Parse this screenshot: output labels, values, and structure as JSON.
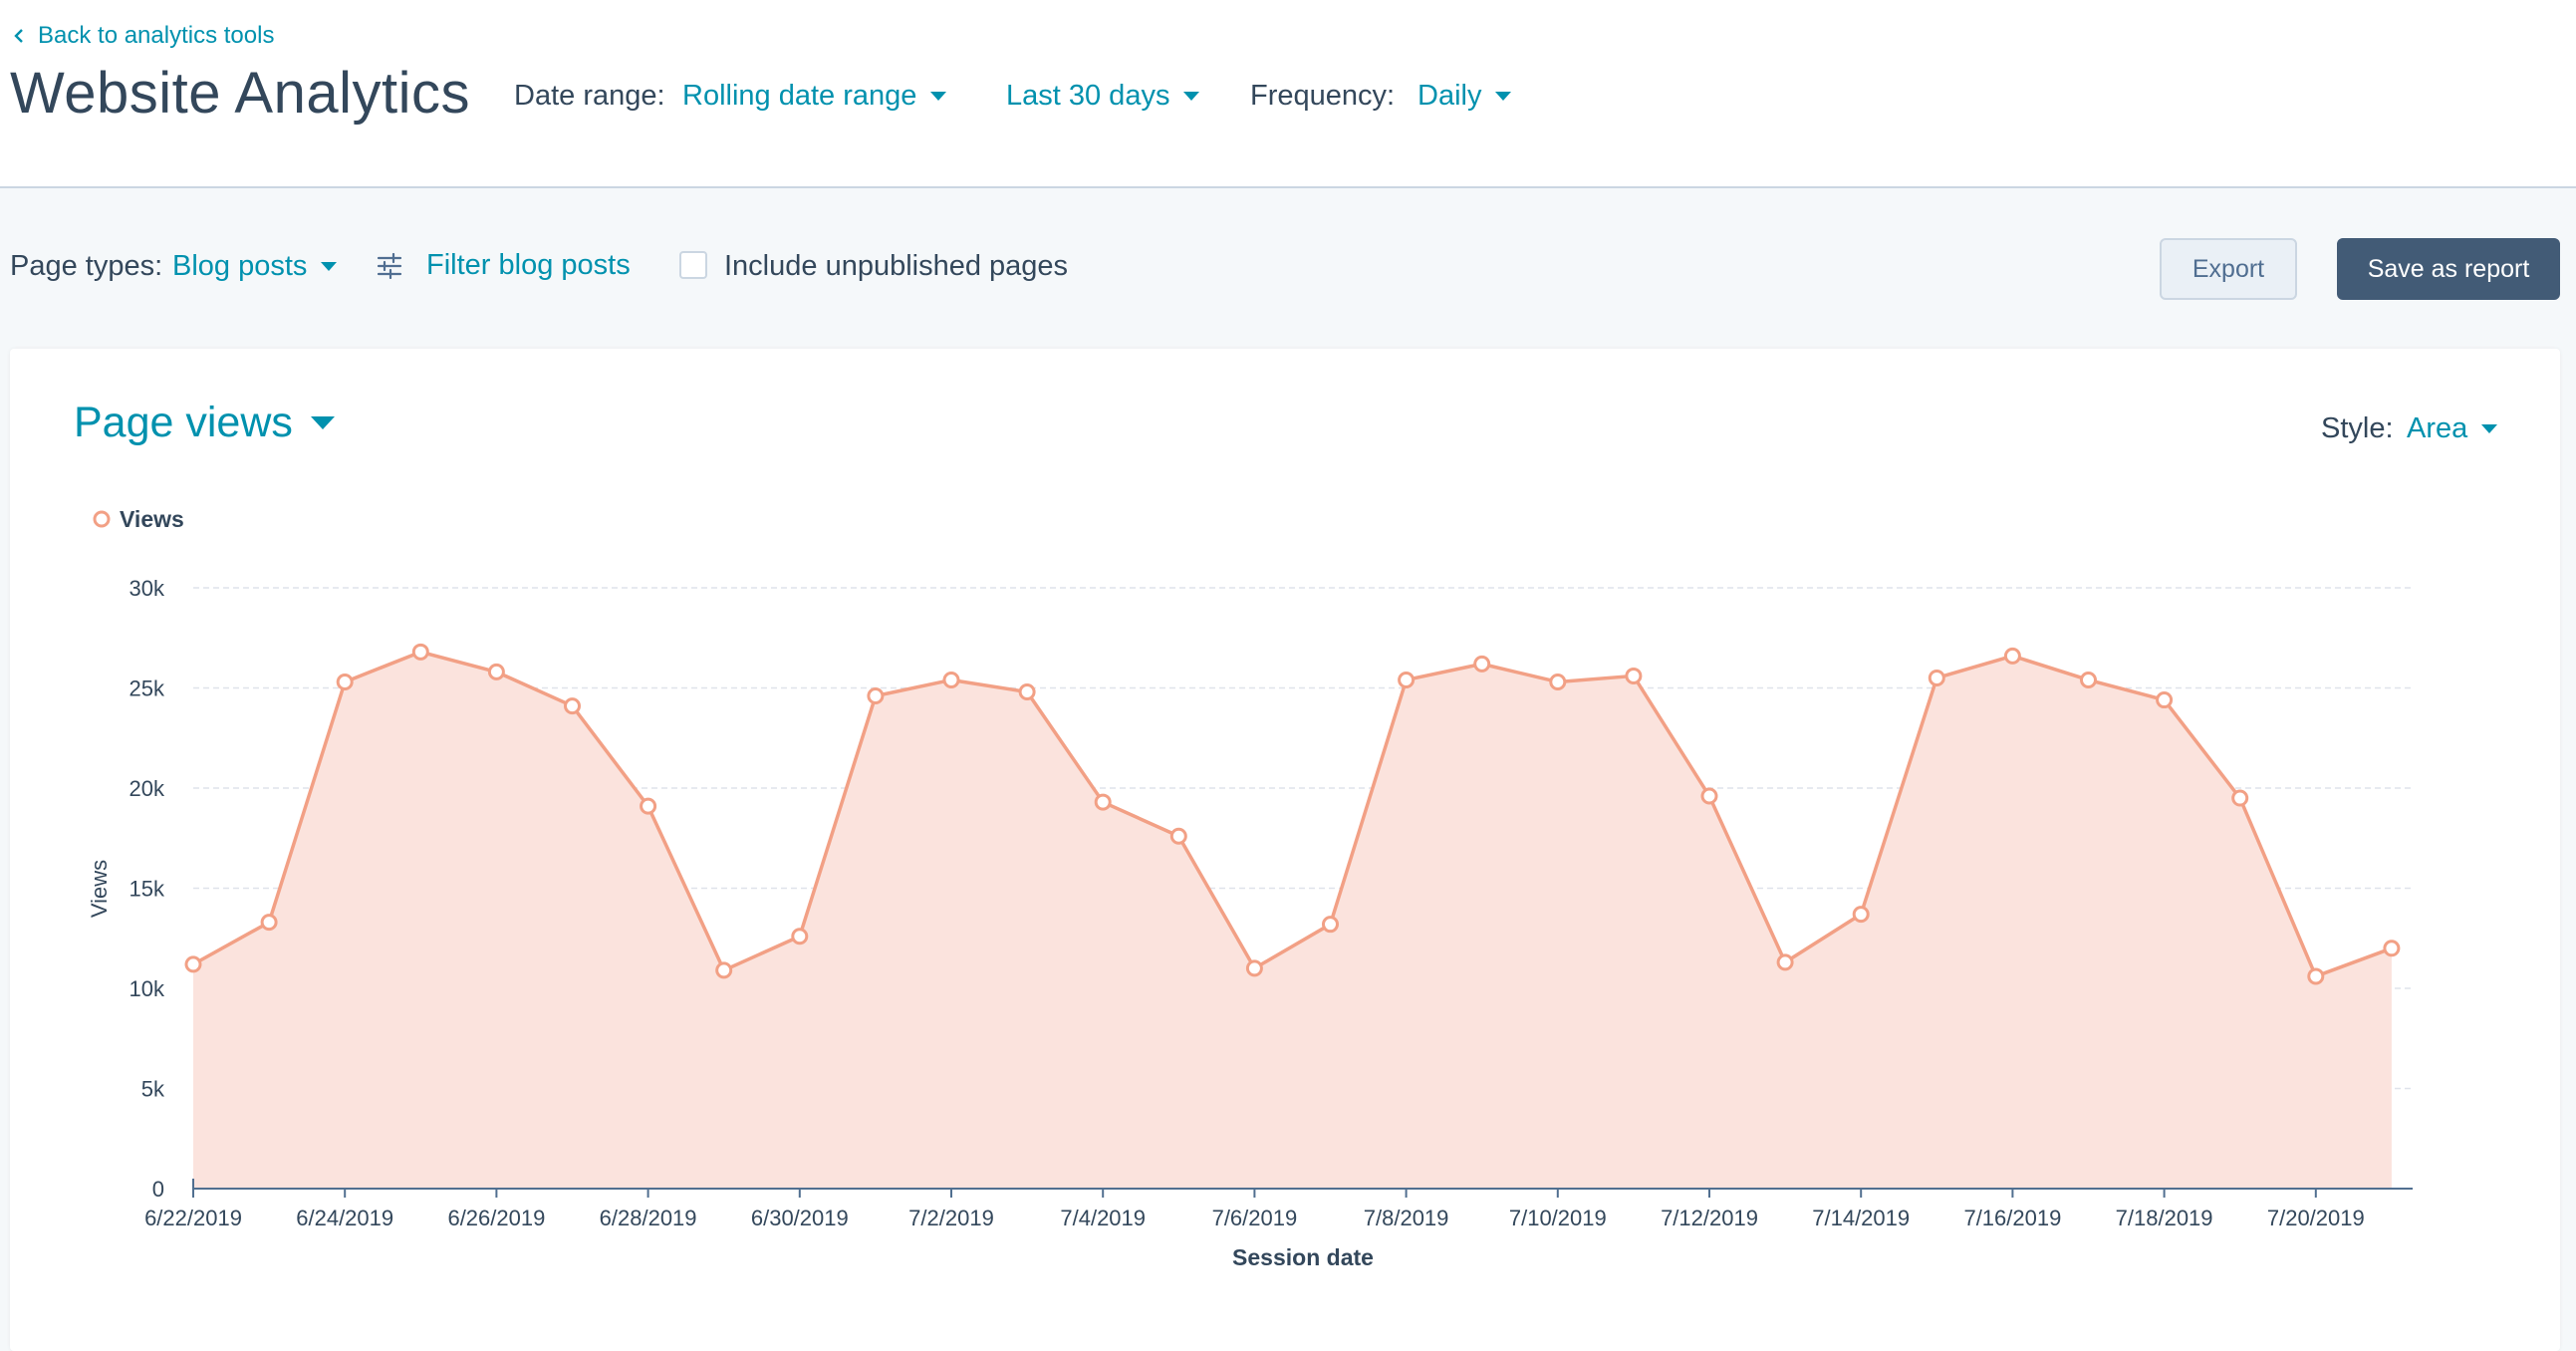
{
  "header": {
    "back_link": "Back to analytics tools",
    "title": "Website Analytics",
    "date_range_label": "Date range:",
    "date_range_value": "Rolling date range",
    "period_value": "Last 30 days",
    "frequency_label": "Frequency:",
    "frequency_value": "Daily"
  },
  "filters": {
    "page_types_label": "Page types:",
    "page_types_value": "Blog posts",
    "filter_link": "Filter blog posts",
    "include_unpublished_label": "Include unpublished pages",
    "include_unpublished_checked": false,
    "export_label": "Export",
    "save_label": "Save as report"
  },
  "card": {
    "metric": "Page views",
    "style_label": "Style:",
    "style_value": "Area"
  },
  "colors": {
    "accent": "#0091ae",
    "series": "#f2a085",
    "area_fill": "#fbe3dd",
    "save_button": "#425b76"
  },
  "chart_data": {
    "type": "area",
    "xlabel": "Session date",
    "ylabel": "Views",
    "ylim": [
      0,
      30000
    ],
    "yticks": [
      0,
      5000,
      10000,
      15000,
      20000,
      25000,
      30000
    ],
    "ytick_labels": [
      "0",
      "5k",
      "10k",
      "15k",
      "20k",
      "25k",
      "30k"
    ],
    "x": [
      "6/22/2019",
      "6/23/2019",
      "6/24/2019",
      "6/25/2019",
      "6/26/2019",
      "6/27/2019",
      "6/28/2019",
      "6/29/2019",
      "6/30/2019",
      "7/1/2019",
      "7/2/2019",
      "7/3/2019",
      "7/4/2019",
      "7/5/2019",
      "7/6/2019",
      "7/7/2019",
      "7/8/2019",
      "7/9/2019",
      "7/10/2019",
      "7/11/2019",
      "7/12/2019",
      "7/13/2019",
      "7/14/2019",
      "7/15/2019",
      "7/16/2019",
      "7/17/2019",
      "7/18/2019",
      "7/19/2019",
      "7/20/2019",
      "7/21/2019"
    ],
    "xtick_labels": [
      "6/22/2019",
      "6/24/2019",
      "6/26/2019",
      "6/28/2019",
      "6/30/2019",
      "7/2/2019",
      "7/4/2019",
      "7/6/2019",
      "7/8/2019",
      "7/10/2019",
      "7/12/2019",
      "7/14/2019",
      "7/16/2019",
      "7/18/2019",
      "7/20/2019"
    ],
    "series": [
      {
        "name": "Views",
        "values": [
          11200,
          13300,
          25300,
          26800,
          25800,
          24100,
          19100,
          10900,
          12600,
          24600,
          25400,
          24800,
          19300,
          17600,
          11000,
          13200,
          25400,
          26200,
          25300,
          25600,
          19600,
          11300,
          13700,
          25500,
          26600,
          25400,
          24400,
          19500,
          10600,
          12000
        ]
      }
    ],
    "grid": true,
    "legend": "top-left"
  }
}
